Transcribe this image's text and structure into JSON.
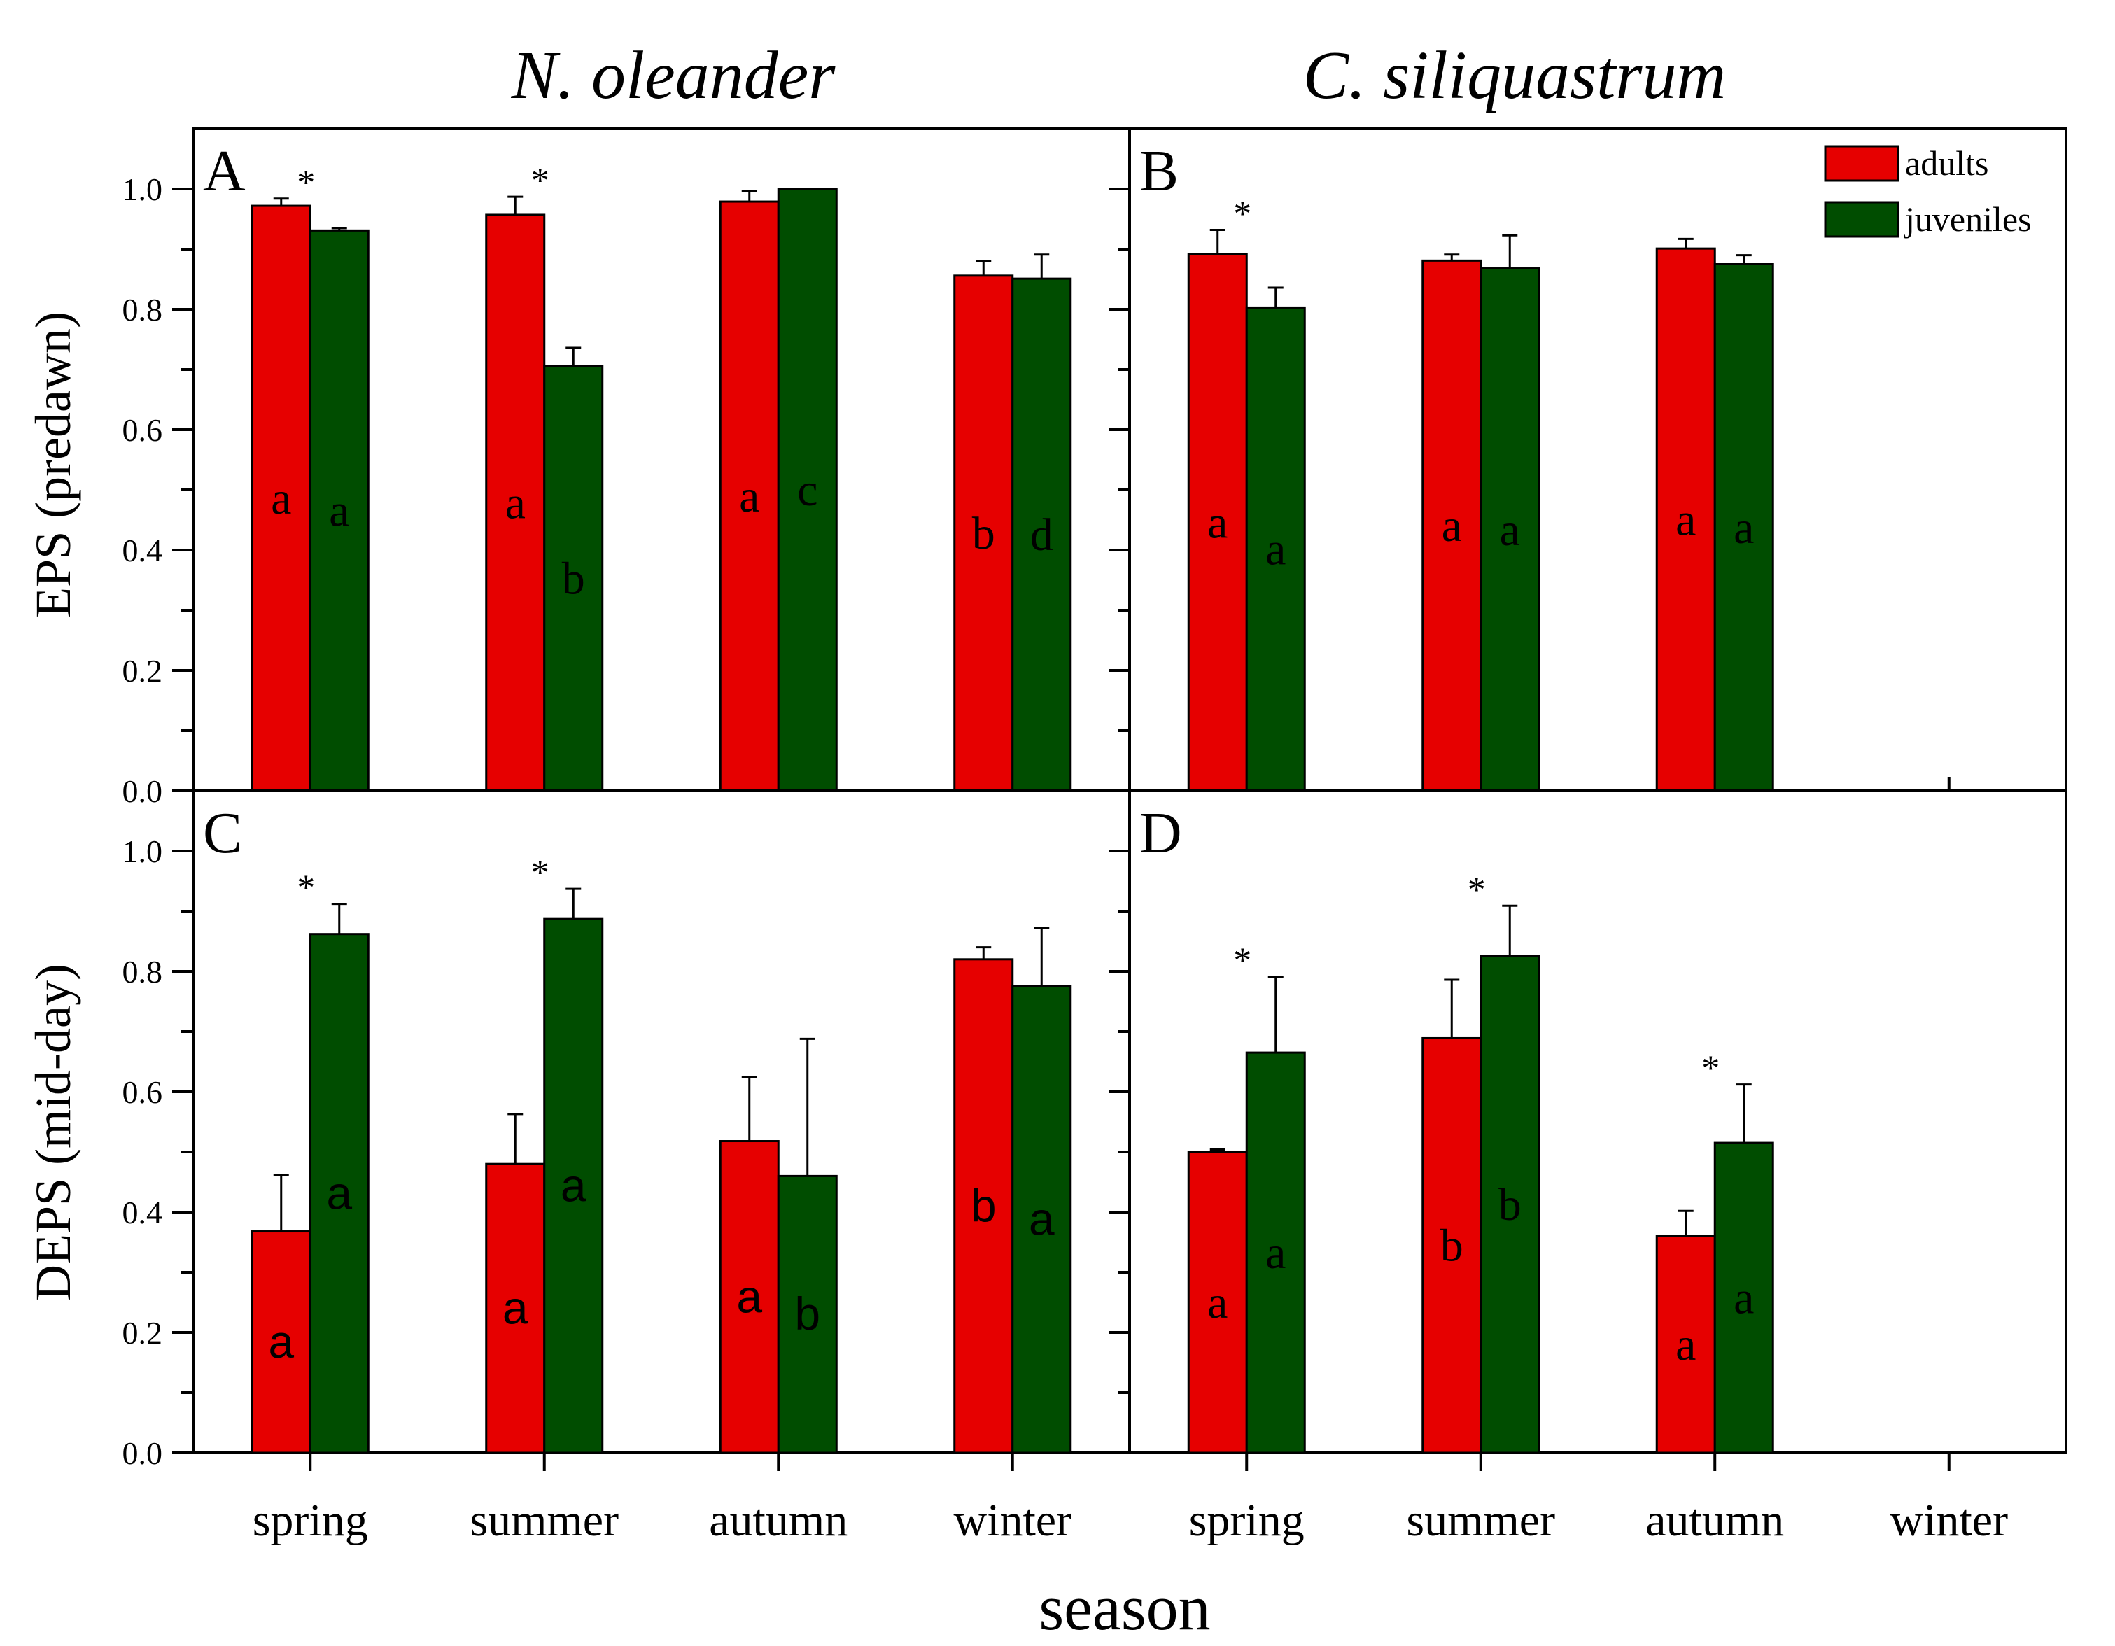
{
  "figure": {
    "species": [
      "N. oleander",
      "C. siliquastrum"
    ],
    "xlabel": "season",
    "colors": {
      "adults": "#e60000",
      "juveniles": "#004d00"
    }
  },
  "legend": {
    "items": [
      "adults",
      "juveniles"
    ]
  },
  "chart_data": [
    {
      "type": "bar",
      "panel": "A",
      "species": "N. oleander",
      "ylabel": "EPS (predawn)",
      "ylim": [
        0,
        1.1
      ],
      "yticks": [
        "0.0",
        "0.2",
        "0.4",
        "0.6",
        "0.8",
        "1.0"
      ],
      "categories": [
        "spring",
        "summer",
        "autumn",
        "winter"
      ],
      "series": [
        {
          "name": "adults",
          "values": [
            0.972,
            0.957,
            0.979,
            0.856
          ],
          "errors": [
            0.012,
            0.03,
            0.018,
            0.024
          ],
          "letters": [
            "a",
            "a",
            "a",
            "b"
          ]
        },
        {
          "name": "juveniles",
          "values": [
            0.931,
            0.706,
            1.0,
            0.851
          ],
          "errors": [
            0.004,
            0.03,
            0,
            0.04
          ],
          "letters": [
            "a",
            "b",
            "c",
            "d"
          ]
        }
      ],
      "significance": [
        "*",
        "*",
        "",
        ""
      ]
    },
    {
      "type": "bar",
      "panel": "B",
      "species": "C. siliquastrum",
      "ylabel": "EPS (predawn)",
      "ylim": [
        0,
        1.1
      ],
      "yticks": [
        "0.0",
        "0.2",
        "0.4",
        "0.6",
        "0.8",
        "1.0"
      ],
      "categories": [
        "spring",
        "summer",
        "autumn",
        "winter"
      ],
      "series": [
        {
          "name": "adults",
          "values": [
            0.892,
            0.881,
            0.901,
            null
          ],
          "errors": [
            0.04,
            0.01,
            0.016,
            null
          ],
          "letters": [
            "a",
            "a",
            "a",
            ""
          ]
        },
        {
          "name": "juveniles",
          "values": [
            0.803,
            0.868,
            0.875,
            null
          ],
          "errors": [
            0.033,
            0.055,
            0.015,
            null
          ],
          "letters": [
            "a",
            "a",
            "a",
            ""
          ]
        }
      ],
      "significance": [
        "*",
        "",
        "",
        ""
      ]
    },
    {
      "type": "bar",
      "panel": "C",
      "species": "N. oleander",
      "ylabel": "DEPS (mid-day)",
      "ylim": [
        0,
        1.1
      ],
      "yticks": [
        "0.0",
        "0.2",
        "0.4",
        "0.6",
        "0.8",
        "1.0"
      ],
      "categories": [
        "spring",
        "summer",
        "autumn",
        "winter"
      ],
      "series": [
        {
          "name": "adults",
          "values": [
            0.368,
            0.48,
            0.518,
            0.82
          ],
          "errors": [
            0.093,
            0.083,
            0.106,
            0.02
          ],
          "letters": [
            "a",
            "a",
            "a",
            "b"
          ]
        },
        {
          "name": "juveniles",
          "values": [
            0.862,
            0.887,
            0.46,
            0.776
          ],
          "errors": [
            0.05,
            0.05,
            0.228,
            0.096
          ],
          "letters": [
            "a",
            "a",
            "b",
            "a"
          ]
        }
      ],
      "significance": [
        "*",
        "*",
        "",
        ""
      ]
    },
    {
      "type": "bar",
      "panel": "D",
      "species": "C. siliquastrum",
      "ylabel": "DEPS (mid-day)",
      "ylim": [
        0,
        1.1
      ],
      "yticks": [
        "0.0",
        "0.2",
        "0.4",
        "0.6",
        "0.8",
        "1.0"
      ],
      "categories": [
        "spring",
        "summer",
        "autumn",
        "winter"
      ],
      "series": [
        {
          "name": "adults",
          "values": [
            0.5,
            0.689,
            0.36,
            null
          ],
          "errors": [
            0.004,
            0.097,
            0.042,
            null
          ],
          "letters": [
            "a",
            "b",
            "a",
            ""
          ]
        },
        {
          "name": "juveniles",
          "values": [
            0.665,
            0.826,
            0.515,
            null
          ],
          "errors": [
            0.126,
            0.083,
            0.097,
            null
          ],
          "letters": [
            "a",
            "b",
            "a",
            ""
          ]
        }
      ],
      "significance": [
        "*",
        "*",
        "*",
        ""
      ]
    }
  ]
}
